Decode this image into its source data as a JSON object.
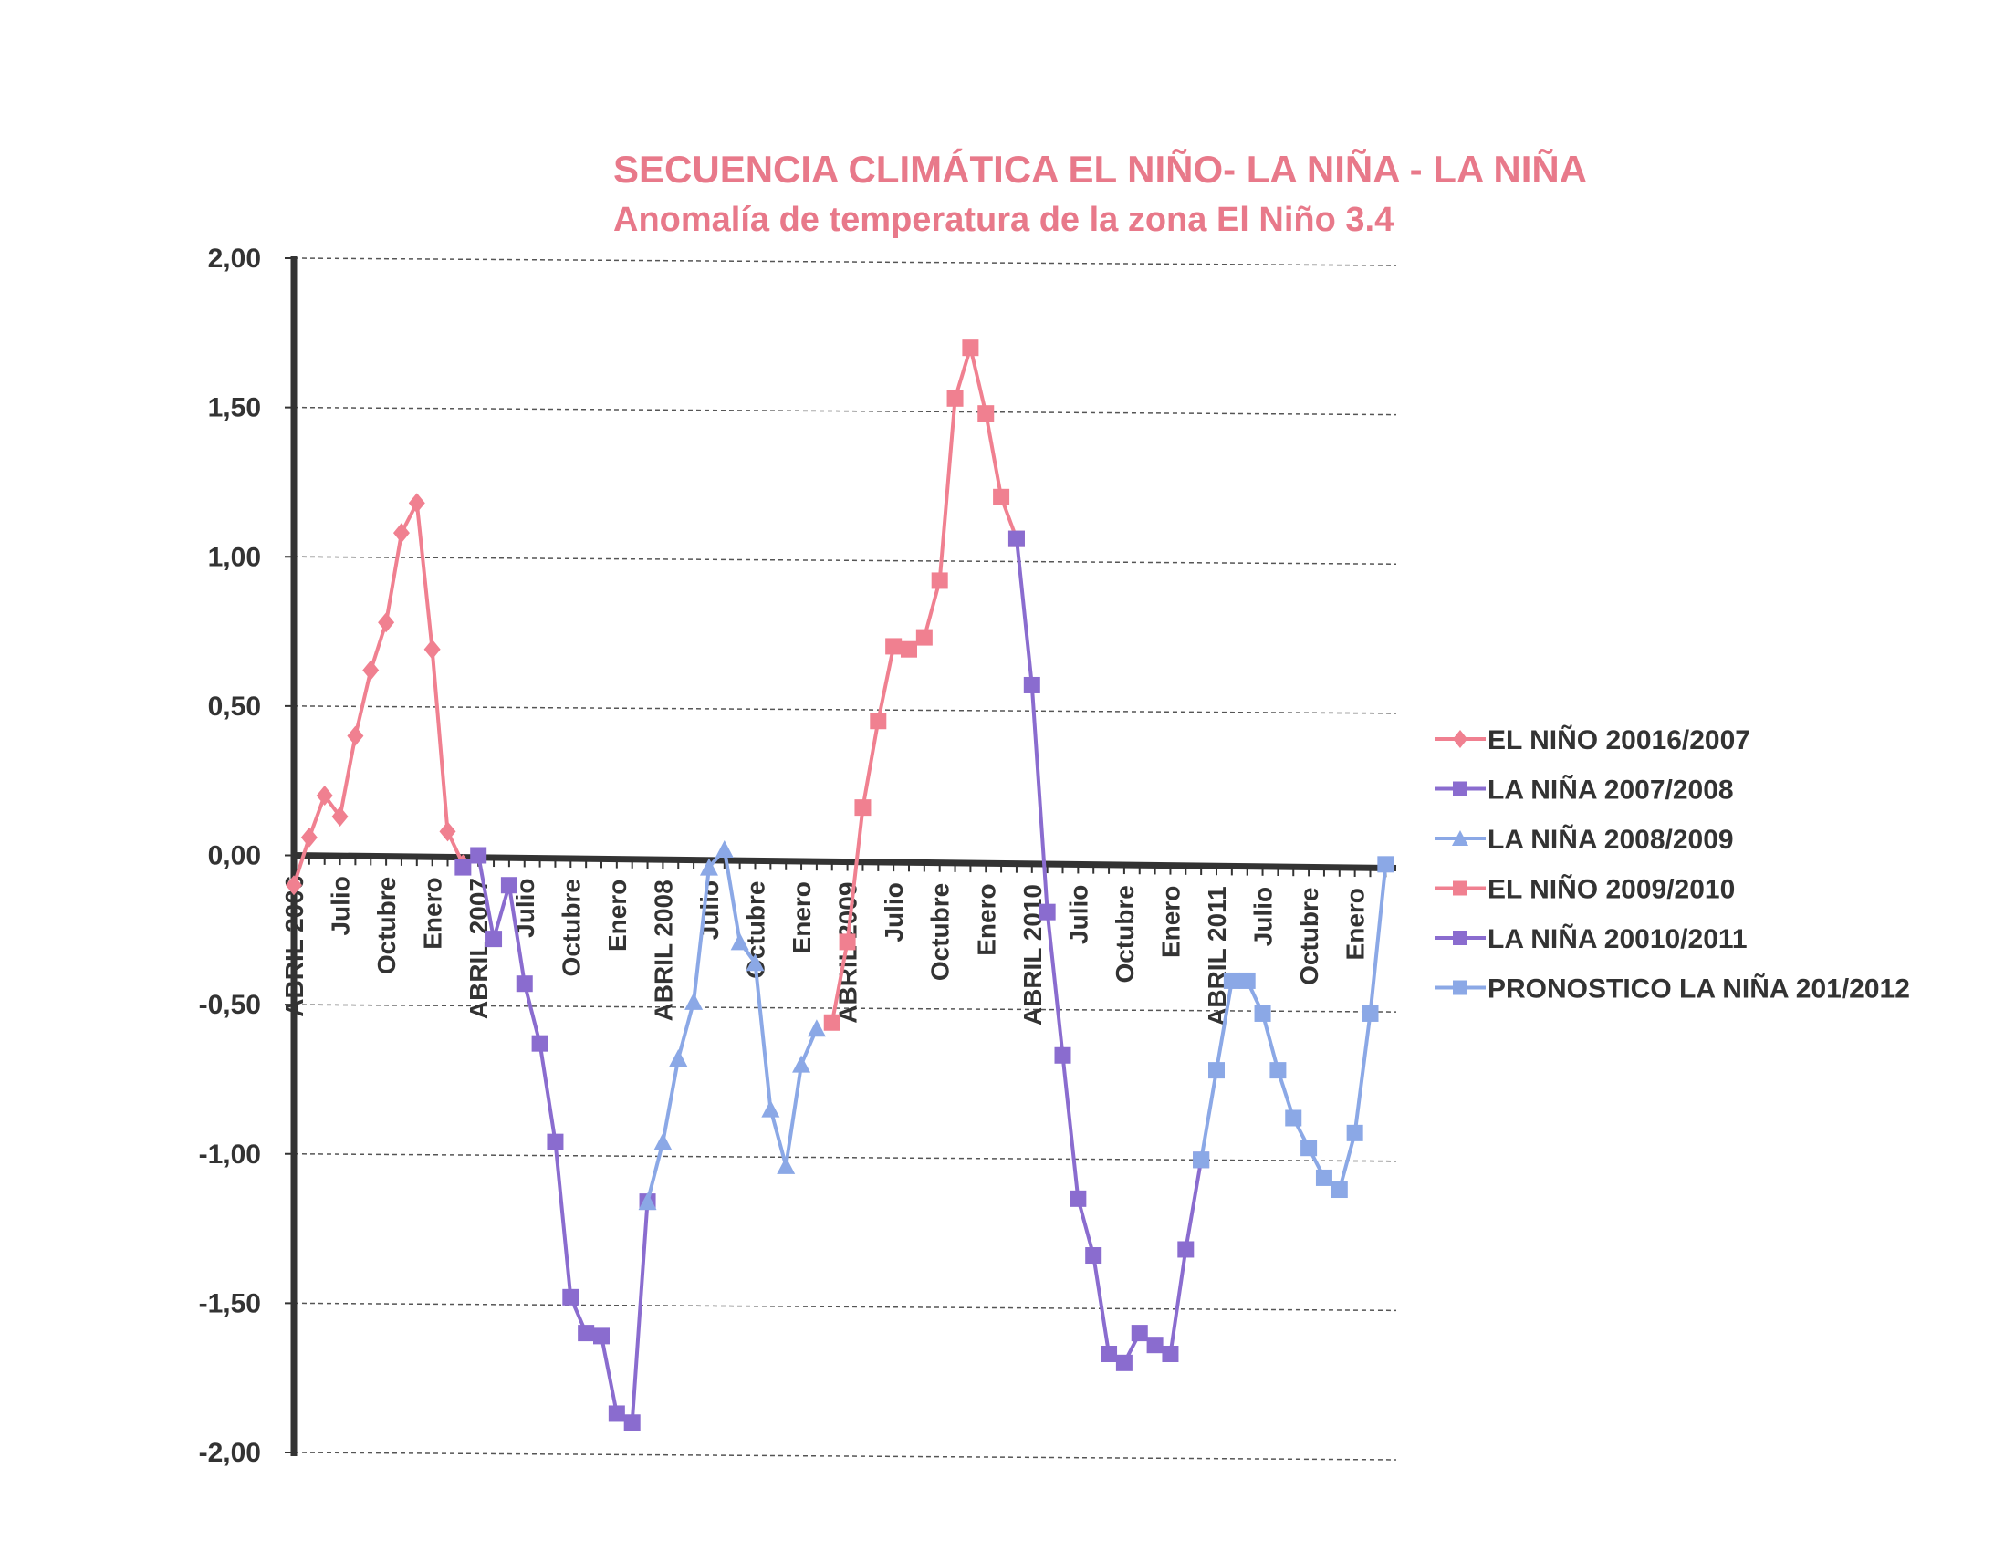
{
  "chart_data": {
    "type": "line",
    "title": "SECUENCIA CLIMÁTICA EL NIÑO- LA NIÑA - LA NIÑA",
    "subtitle": "Anomalía de temperatura de la zona El Niño 3.4",
    "ylim": [
      -2.0,
      2.0
    ],
    "yticks": [
      "2,00",
      "1,50",
      "1,00",
      "0,50",
      "0,00",
      "-0,50",
      "-1,00",
      "-1,50",
      "-2,00"
    ],
    "ytick_values": [
      2.0,
      1.5,
      1.0,
      0.5,
      0.0,
      -0.5,
      -1.0,
      -1.5,
      -2.0
    ],
    "x_months": 72,
    "xtick_labels": [
      {
        "month": 0,
        "label": "ABRIL 2006"
      },
      {
        "month": 3,
        "label": "Julio"
      },
      {
        "month": 6,
        "label": "Octubre"
      },
      {
        "month": 9,
        "label": "Enero"
      },
      {
        "month": 12,
        "label": "ABRIL 2007"
      },
      {
        "month": 15,
        "label": "Julio"
      },
      {
        "month": 18,
        "label": "Octubre"
      },
      {
        "month": 21,
        "label": "Enero"
      },
      {
        "month": 24,
        "label": "ABRIL 2008"
      },
      {
        "month": 27,
        "label": "Julio"
      },
      {
        "month": 30,
        "label": "Octubre"
      },
      {
        "month": 33,
        "label": "Enero"
      },
      {
        "month": 36,
        "label": "ABRIL 2009"
      },
      {
        "month": 39,
        "label": "Julio"
      },
      {
        "month": 42,
        "label": "Octubre"
      },
      {
        "month": 45,
        "label": "Enero"
      },
      {
        "month": 48,
        "label": "ABRIL 2010"
      },
      {
        "month": 51,
        "label": "Julio"
      },
      {
        "month": 54,
        "label": "Octubre"
      },
      {
        "month": 57,
        "label": "Enero"
      },
      {
        "month": 60,
        "label": "ABRIL 2011"
      },
      {
        "month": 63,
        "label": "Julio"
      },
      {
        "month": 66,
        "label": "Octubre"
      },
      {
        "month": 69,
        "label": "Enero"
      }
    ],
    "grid": true,
    "legend_position": "right",
    "series": [
      {
        "name": "EL NIÑO 20016/2007",
        "color": "#f08090",
        "marker": "diamond",
        "x": [
          0,
          1,
          2,
          3,
          4,
          5,
          6,
          7,
          8,
          9,
          10,
          11
        ],
        "y": [
          -0.1,
          0.06,
          0.2,
          0.13,
          0.4,
          0.62,
          0.78,
          1.08,
          1.18,
          0.69,
          0.08,
          -0.03
        ]
      },
      {
        "name": "LA NIÑA 2007/2008",
        "color": "#8a6ccf",
        "marker": "square",
        "x": [
          11,
          12,
          13,
          14,
          15,
          16,
          17,
          18,
          19,
          20,
          21,
          22,
          23
        ],
        "y": [
          -0.04,
          0.0,
          -0.28,
          -0.1,
          -0.43,
          -0.63,
          -0.96,
          -1.48,
          -1.6,
          -1.61,
          -1.87,
          -1.9,
          -1.16
        ]
      },
      {
        "name": "LA NIÑA 2008/2009",
        "color": "#8ba8e6",
        "marker": "triangle",
        "x": [
          23,
          24,
          25,
          26,
          27,
          28,
          29,
          30,
          31,
          32,
          33,
          34
        ],
        "y": [
          -1.16,
          -0.96,
          -0.68,
          -0.49,
          -0.04,
          0.02,
          -0.29,
          -0.36,
          -0.85,
          -1.04,
          -0.7,
          -0.58
        ]
      },
      {
        "name": "EL NIÑO 2009/2010",
        "color": "#f08090",
        "marker": "square",
        "x": [
          35,
          36,
          37,
          38,
          39,
          40,
          41,
          42,
          43,
          44,
          45,
          46,
          47
        ],
        "y": [
          -0.56,
          -0.29,
          0.16,
          0.45,
          0.7,
          0.69,
          0.73,
          0.92,
          1.53,
          1.7,
          1.48,
          1.2,
          1.06
        ]
      },
      {
        "name": "LA NIÑA 20010/2011",
        "color": "#8a6ccf",
        "marker": "square",
        "x": [
          47,
          48,
          49,
          50,
          51,
          52,
          53,
          54,
          55,
          56,
          57,
          58,
          59
        ],
        "y": [
          1.06,
          0.57,
          -0.19,
          -0.67,
          -1.15,
          -1.34,
          -1.67,
          -1.7,
          -1.6,
          -1.64,
          -1.67,
          -1.32,
          -1.02
        ]
      },
      {
        "name": "PRONOSTICO LA NIÑA 201/2012",
        "color": "#8ba8e6",
        "marker": "square",
        "x": [
          59,
          60,
          61,
          62,
          63,
          64,
          65,
          66,
          67,
          68,
          69,
          70,
          71
        ],
        "y": [
          -1.02,
          -0.72,
          -0.42,
          -0.42,
          -0.53,
          -0.72,
          -0.88,
          -0.98,
          -1.08,
          -1.12,
          -0.93,
          -0.53,
          -0.03
        ]
      }
    ]
  }
}
